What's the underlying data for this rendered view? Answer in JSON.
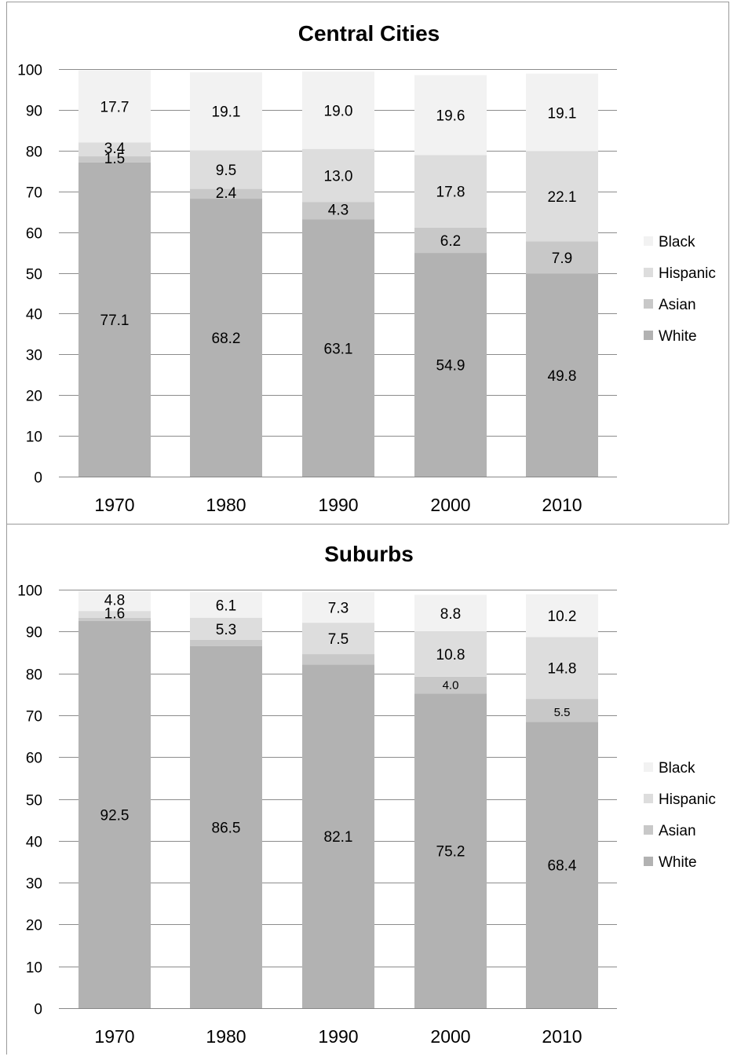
{
  "chart_data": [
    {
      "type": "bar",
      "stacked": true,
      "title": "Central Cities",
      "categories": [
        "1970",
        "1980",
        "1990",
        "2000",
        "2010"
      ],
      "series": [
        {
          "name": "White",
          "values": [
            77.1,
            68.2,
            63.1,
            54.9,
            49.8
          ],
          "color": "#b2b2b2",
          "labels": [
            "77.1",
            "68.2",
            "63.1",
            "54.9",
            "49.8"
          ]
        },
        {
          "name": "Asian",
          "values": [
            1.5,
            2.4,
            4.3,
            6.2,
            7.9
          ],
          "color": "#c8c8c8",
          "labels": [
            "1.5",
            "2.4",
            "4.3",
            "6.2",
            "7.9"
          ]
        },
        {
          "name": "Hispanic",
          "values": [
            3.4,
            9.5,
            13.0,
            17.8,
            22.1
          ],
          "color": "#dddddd",
          "labels": [
            "3.4",
            "9.5",
            "13.0",
            "17.8",
            "22.1"
          ]
        },
        {
          "name": "Black",
          "values": [
            17.7,
            19.1,
            19.0,
            19.6,
            19.1
          ],
          "color": "#f2f2f2",
          "labels": [
            "17.7",
            "19.1",
            "19.0",
            "19.6",
            "19.1"
          ]
        }
      ],
      "ylim": [
        0,
        100
      ],
      "yticks": [
        "0",
        "10",
        "20",
        "30",
        "40",
        "50",
        "60",
        "70",
        "80",
        "90",
        "100"
      ],
      "grid": true,
      "legend": "right"
    },
    {
      "type": "bar",
      "stacked": true,
      "title": "Suburbs",
      "categories": [
        "1970",
        "1980",
        "1990",
        "2000",
        "2010"
      ],
      "series": [
        {
          "name": "White",
          "values": [
            92.5,
            86.5,
            82.1,
            75.2,
            68.4
          ],
          "color": "#b2b2b2",
          "labels": [
            "92.5",
            "86.5",
            "82.1",
            "75.2",
            "68.4"
          ]
        },
        {
          "name": "Asian",
          "values": [
            0.8,
            1.5,
            2.5,
            4.0,
            5.5
          ],
          "color": "#c8c8c8",
          "labels": [
            "",
            "",
            "",
            "4.0",
            "5.5"
          ]
        },
        {
          "name": "Hispanic",
          "values": [
            1.6,
            5.3,
            7.5,
            10.8,
            14.8
          ],
          "color": "#dddddd",
          "labels": [
            "1.6",
            "5.3",
            "7.5",
            "10.8",
            "14.8"
          ]
        },
        {
          "name": "Black",
          "values": [
            4.8,
            6.1,
            7.3,
            8.8,
            10.2
          ],
          "color": "#f2f2f2",
          "labels": [
            "4.8",
            "6.1",
            "7.3",
            "8.8",
            "10.2"
          ]
        }
      ],
      "ylim": [
        0,
        100
      ],
      "yticks": [
        "0",
        "10",
        "20",
        "30",
        "40",
        "50",
        "60",
        "70",
        "80",
        "90",
        "100"
      ],
      "grid": true,
      "legend": "right"
    }
  ],
  "legend_order": [
    "Black",
    "Hispanic",
    "Asian",
    "White"
  ]
}
